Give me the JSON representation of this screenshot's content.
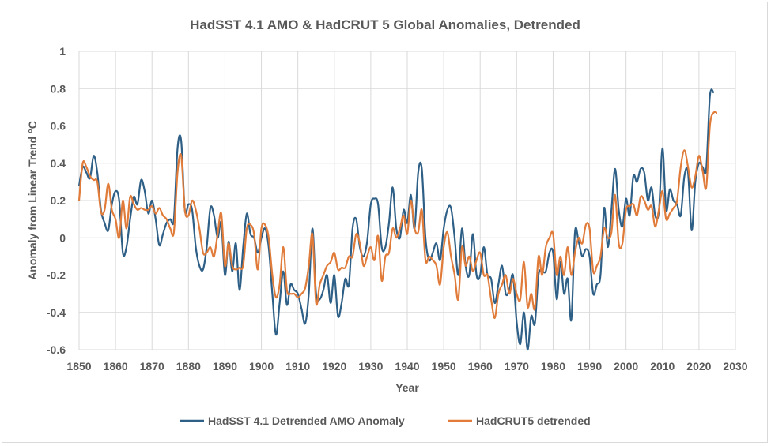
{
  "chart_data": {
    "type": "line",
    "title": "HadSST 4.1 AMO & HadCRUT 5 Global Anomalies, Detrended",
    "xlabel": "Year",
    "ylabel": "Anomaly from Linear Trend °C",
    "xlim": [
      1850,
      2030
    ],
    "ylim": [
      -0.6,
      1
    ],
    "xticks": [
      1850,
      1860,
      1870,
      1880,
      1890,
      1900,
      1910,
      1920,
      1930,
      1940,
      1950,
      1960,
      1970,
      1980,
      1990,
      2000,
      2010,
      2020,
      2030
    ],
    "yticks": [
      -0.6,
      -0.4,
      -0.2,
      0,
      0.2,
      0.4,
      0.6,
      0.8,
      1
    ],
    "grid": true,
    "legend": "bottom",
    "series": [
      {
        "name": "HadSST 4.1 Detrended AMO Anomaly",
        "color": "#2e5f86",
        "start_year": 1850,
        "values": [
          0.28,
          0.38,
          0.35,
          0.32,
          0.44,
          0.35,
          0.15,
          0.08,
          0.04,
          0.18,
          0.25,
          0.2,
          -0.08,
          -0.05,
          0.1,
          0.22,
          0.18,
          0.31,
          0.25,
          0.13,
          0.2,
          0.1,
          -0.04,
          0.02,
          0.08,
          0.1,
          0.1,
          0.48,
          0.52,
          0.15,
          0.18,
          0.15,
          -0.05,
          -0.15,
          -0.17,
          -0.05,
          0.16,
          0.12,
          0.0,
          0.08,
          -0.2,
          -0.02,
          -0.18,
          -0.03,
          -0.28,
          -0.05,
          0.13,
          0.02,
          0.0,
          -0.08,
          0.0,
          0.05,
          -0.05,
          -0.3,
          -0.52,
          -0.35,
          -0.18,
          -0.36,
          -0.25,
          -0.28,
          -0.3,
          -0.38,
          -0.46,
          -0.3,
          0.05,
          -0.3,
          -0.33,
          -0.28,
          -0.2,
          -0.35,
          -0.2,
          -0.42,
          -0.35,
          -0.22,
          -0.25,
          0.05,
          0.1,
          -0.05,
          -0.1,
          -0.02,
          0.18,
          0.21,
          0.18,
          -0.05,
          -0.05,
          0.08,
          0.27,
          0.05,
          0.0,
          0.15,
          0.08,
          0.23,
          0.05,
          0.35,
          0.37,
          0.0,
          -0.12,
          -0.08,
          -0.03,
          -0.12,
          0.05,
          0.15,
          0.16,
          0.0,
          -0.2,
          0.05,
          -0.15,
          -0.2,
          0.02,
          -0.2,
          -0.2,
          -0.05,
          -0.2,
          -0.22,
          -0.35,
          -0.25,
          -0.15,
          -0.3,
          -0.28,
          -0.2,
          -0.45,
          -0.57,
          -0.4,
          -0.6,
          -0.42,
          -0.46,
          -0.2,
          -0.18,
          -0.18,
          -0.08,
          -0.08,
          -0.33,
          -0.13,
          -0.3,
          -0.22,
          -0.44,
          0.03,
          -0.02,
          -0.1,
          -0.06,
          -0.1,
          -0.3,
          -0.25,
          -0.2,
          0.16,
          -0.05,
          0.15,
          0.37,
          0.15,
          0.06,
          0.21,
          0.12,
          0.33,
          0.3,
          0.37,
          0.35,
          0.2,
          0.27,
          0.12,
          0.14,
          0.48,
          0.15,
          0.26,
          0.2,
          0.18,
          0.12,
          0.33,
          0.35,
          0.04,
          0.3,
          0.4,
          0.38,
          0.37,
          0.76,
          0.78
        ]
      },
      {
        "name": "HadCRUT5 detrended",
        "color": "#e07b39",
        "start_year": 1850,
        "values": [
          0.2,
          0.4,
          0.38,
          0.33,
          0.31,
          0.3,
          0.14,
          0.15,
          0.29,
          0.15,
          0.1,
          0.0,
          0.2,
          0.05,
          0.22,
          0.18,
          0.15,
          0.16,
          0.15,
          0.15,
          0.17,
          0.13,
          0.16,
          0.12,
          0.1,
          0.05,
          0.03,
          0.35,
          0.44,
          0.15,
          0.12,
          0.2,
          0.15,
          0.05,
          -0.08,
          -0.08,
          -0.05,
          -0.1,
          0.02,
          0.13,
          -0.15,
          -0.03,
          -0.15,
          -0.17,
          -0.16,
          -0.15,
          0.05,
          0.07,
          0.02,
          -0.17,
          0.05,
          0.07,
          0.0,
          -0.2,
          -0.32,
          -0.25,
          -0.05,
          -0.28,
          -0.3,
          -0.3,
          -0.32,
          -0.3,
          -0.27,
          -0.15,
          0.02,
          -0.35,
          -0.25,
          -0.2,
          -0.15,
          -0.13,
          -0.08,
          -0.17,
          -0.16,
          -0.16,
          -0.1,
          -0.1,
          0.02,
          -0.03,
          -0.15,
          -0.1,
          -0.05,
          -0.12,
          0.01,
          -0.23,
          -0.1,
          -0.08,
          0.05,
          0.0,
          0.05,
          0.12,
          0.02,
          0.2,
          0.05,
          0.03,
          0.15,
          -0.12,
          -0.1,
          -0.12,
          -0.15,
          -0.25,
          -0.05,
          0.03,
          -0.1,
          -0.2,
          -0.33,
          -0.05,
          -0.15,
          -0.1,
          -0.18,
          -0.12,
          -0.08,
          -0.2,
          -0.2,
          -0.33,
          -0.43,
          -0.3,
          -0.25,
          -0.2,
          -0.3,
          -0.22,
          -0.3,
          -0.33,
          -0.13,
          -0.37,
          -0.3,
          -0.38,
          -0.1,
          -0.2,
          -0.05,
          0.0,
          0.02,
          -0.2,
          -0.1,
          -0.2,
          -0.05,
          -0.2,
          -0.08,
          0.0,
          -0.03,
          0.07,
          0.05,
          -0.18,
          -0.15,
          -0.1,
          0.05,
          0.0,
          0.03,
          0.23,
          -0.03,
          -0.03,
          0.15,
          0.17,
          0.18,
          0.12,
          0.22,
          0.2,
          0.15,
          0.17,
          0.06,
          0.15,
          0.25,
          0.1,
          0.13,
          0.16,
          0.2,
          0.38,
          0.47,
          0.38,
          0.27,
          0.33,
          0.44,
          0.36,
          0.27,
          0.6,
          0.67,
          0.67
        ]
      }
    ]
  }
}
